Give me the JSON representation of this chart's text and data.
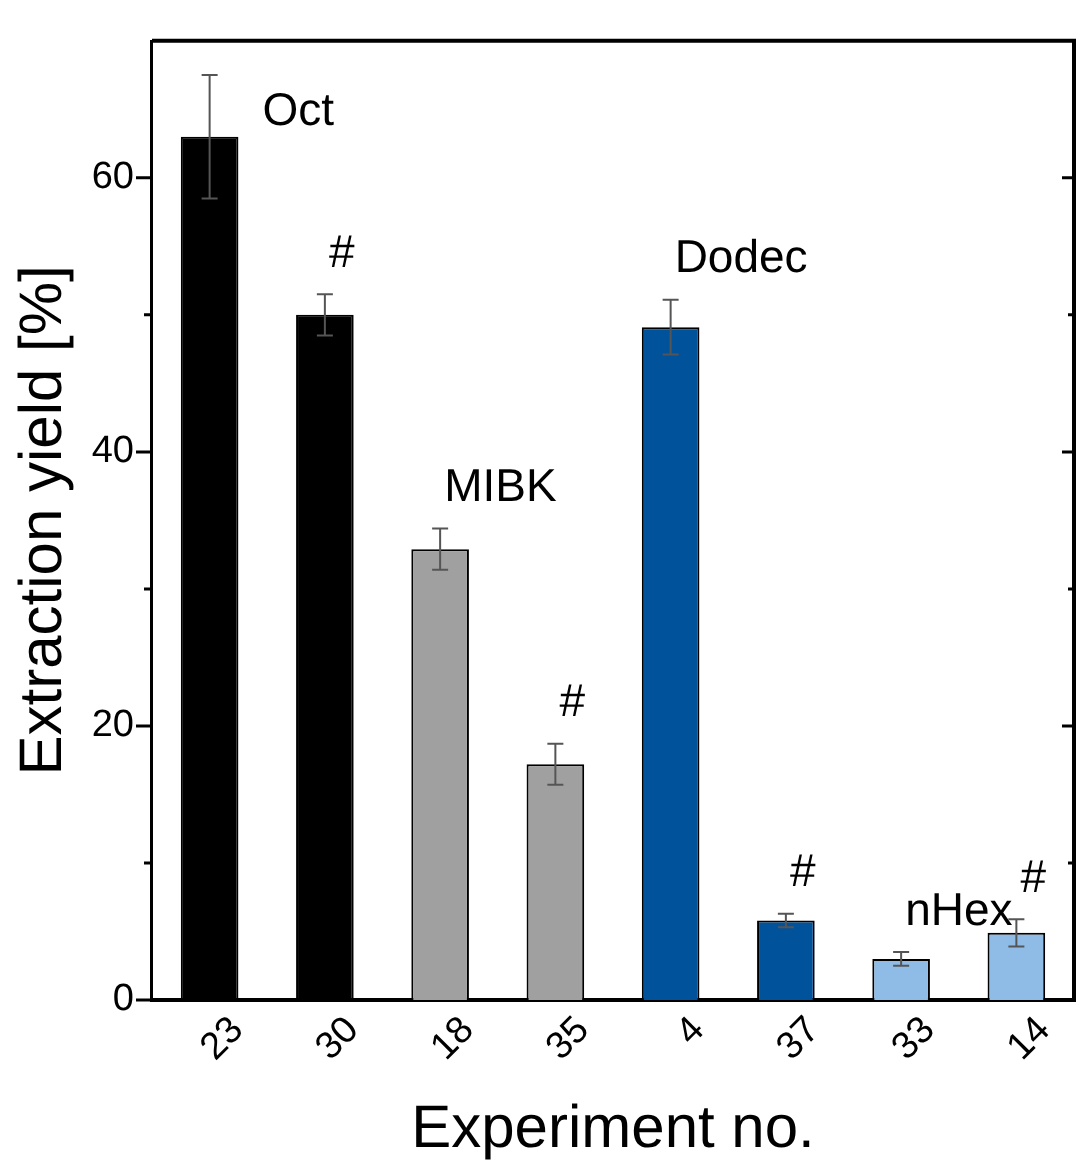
{
  "chart_data": {
    "type": "bar",
    "xlabel": "Experiment no.",
    "ylabel": "Extraction yield [%]",
    "categories": [
      "23",
      "30",
      "18",
      "35",
      "4",
      "37",
      "33",
      "14"
    ],
    "values": [
      63,
      50,
      32.9,
      17.2,
      49.1,
      5.8,
      3,
      4.9
    ],
    "colors": [
      "#000000",
      "#000000",
      "#a0a0a0",
      "#a0a0a0",
      "#00529b",
      "#00529b",
      "#8fbce6",
      "#8fbce6"
    ],
    "errors": [
      4.5,
      1.5,
      1.5,
      1.5,
      2,
      0.5,
      0.5,
      1
    ],
    "ylim": [
      0,
      70
    ],
    "yticks": [
      0,
      {
        "value": 10,
        "label": null
      },
      20,
      {
        "value": 30,
        "label": null
      },
      40,
      {
        "value": 50,
        "label": null
      },
      60
    ],
    "annotations": [
      {
        "text": "Oct",
        "x": "23",
        "y": 63
      },
      {
        "text": "#",
        "x": "30",
        "y": 50
      },
      {
        "text": "MIBK",
        "x": "18",
        "y": 32.9
      },
      {
        "text": "#",
        "x": "35",
        "y": 17.2
      },
      {
        "text": "Dodec",
        "x": "4",
        "y": 49.1
      },
      {
        "text": "#",
        "x": "37",
        "y": 5.8
      },
      {
        "text": "nHex",
        "x": "33",
        "y": 3
      },
      {
        "text": "#",
        "x": "14",
        "y": 4.9
      }
    ]
  }
}
